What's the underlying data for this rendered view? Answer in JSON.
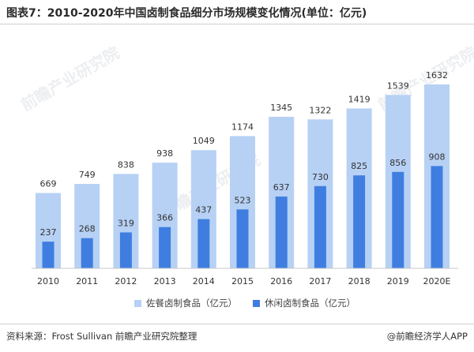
{
  "title": "图表7：2010-2020年中国卤制食品细分市场规模变化情况(单位：亿元)",
  "source": "资料来源：Frost Sullivan 前瞻产业研究院整理",
  "brand": "@前瞻经济学人APP",
  "watermark": "前瞻产业研究院",
  "colors": {
    "series1": "#b7d1f5",
    "series2": "#3f7ee0",
    "axis": "#c8c8c8",
    "label": "#333333"
  },
  "chart_data": {
    "type": "bar",
    "categories": [
      "2010",
      "2011",
      "2012",
      "2013",
      "2014",
      "2015",
      "2016",
      "2017",
      "2018",
      "2019",
      "2020E"
    ],
    "series": [
      {
        "name": "佐餐卤制食品（亿元）",
        "values": [
          669,
          749,
          838,
          938,
          1049,
          1174,
          1345,
          1322,
          1419,
          1539,
          1632
        ]
      },
      {
        "name": "休闲卤制食品（亿元）",
        "values": [
          237,
          268,
          319,
          366,
          437,
          523,
          637,
          730,
          825,
          856,
          908
        ]
      }
    ],
    "title": "图表7：2010-2020年中国卤制食品细分市场规模变化情况(单位：亿元)",
    "xlabel": "",
    "ylabel": "",
    "ylim": [
      0,
      1700
    ],
    "grid": false,
    "legend": "bottom"
  }
}
